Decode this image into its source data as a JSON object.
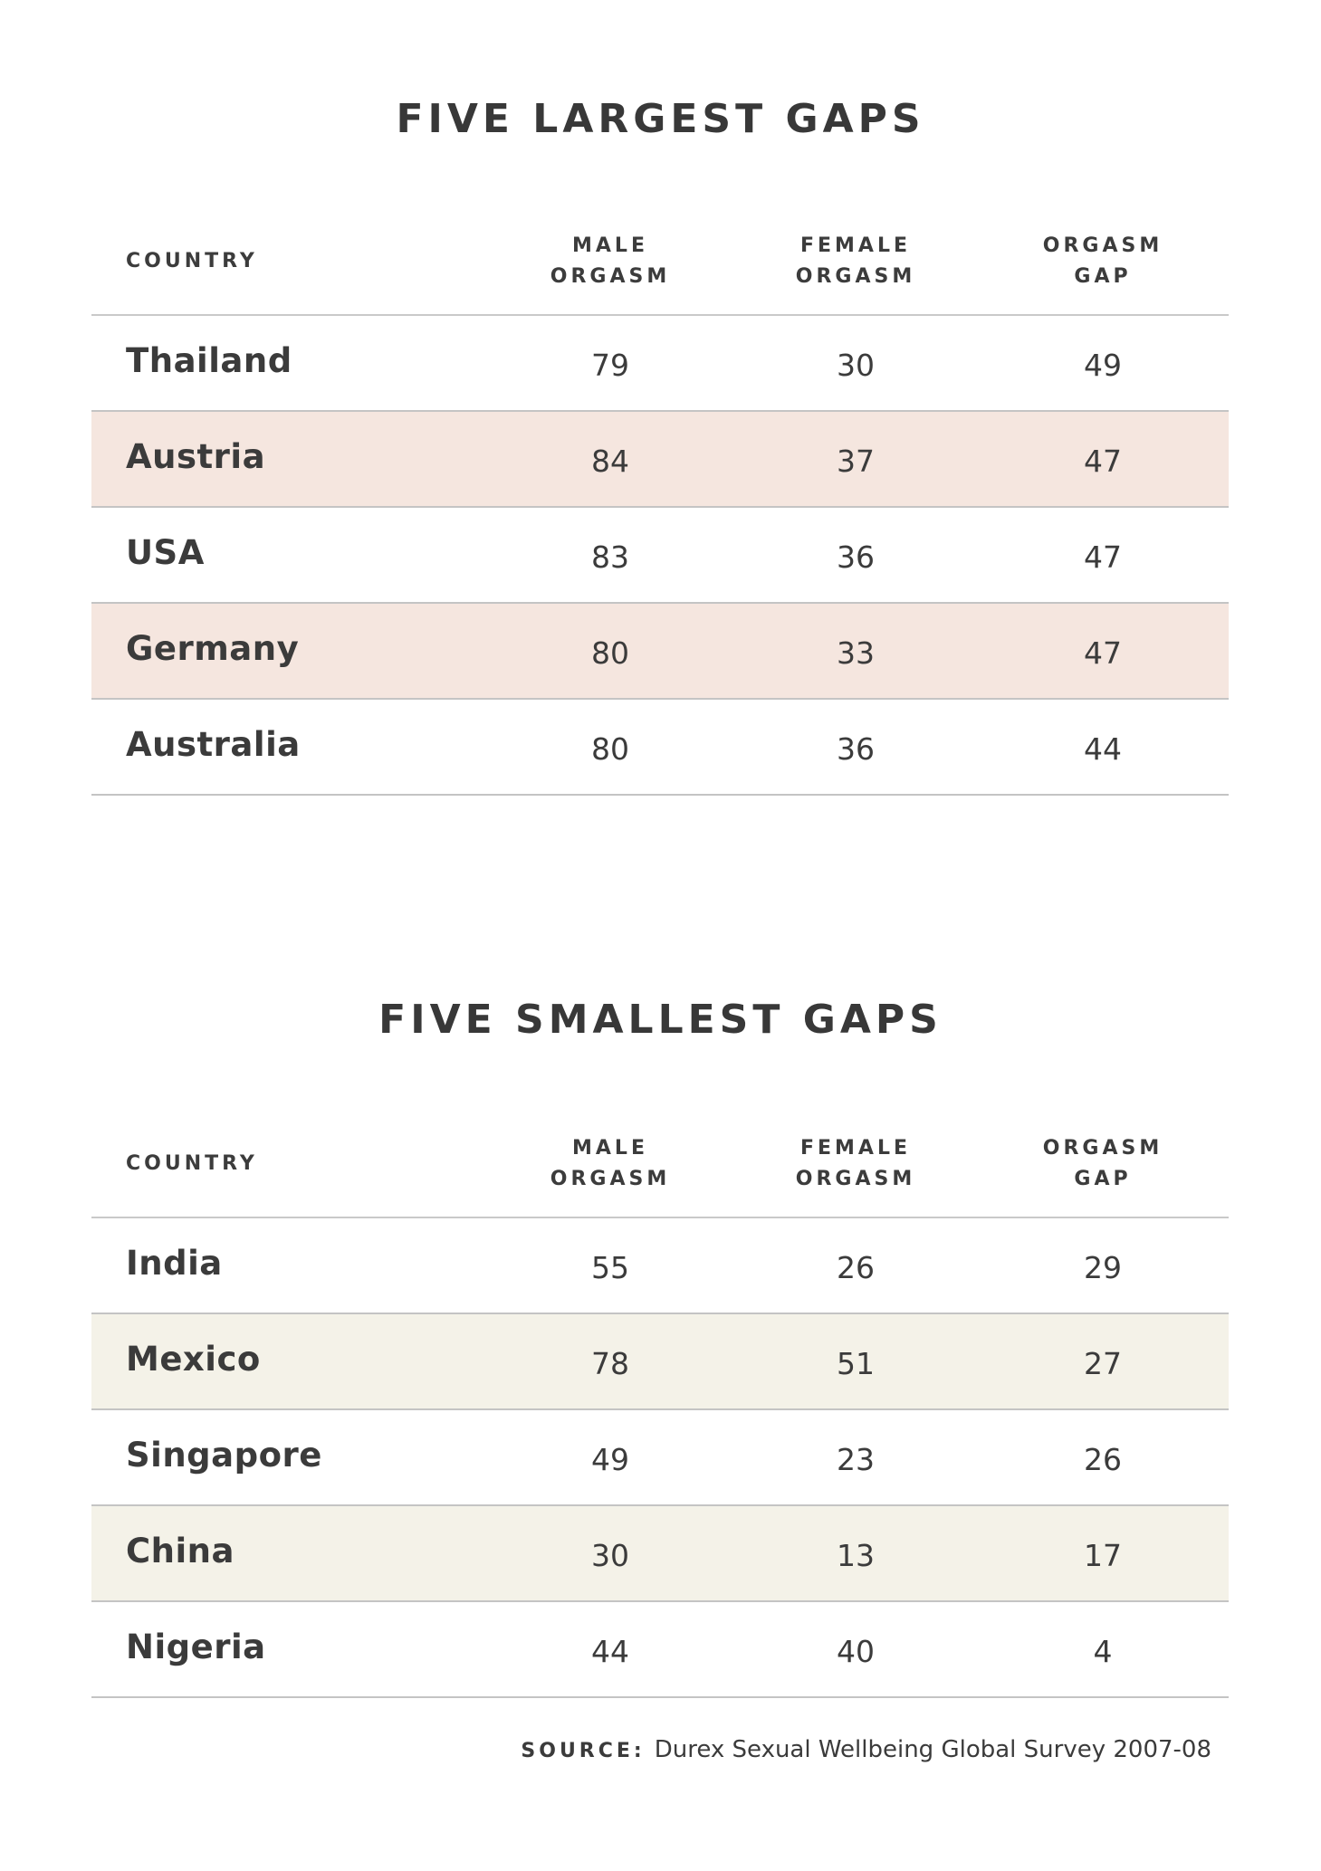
{
  "chart_data": [
    {
      "type": "table",
      "title": "FIVE LARGEST GAPS",
      "columns": [
        {
          "line1": "COUNTRY",
          "line2": ""
        },
        {
          "line1": "MALE",
          "line2": "ORGASM"
        },
        {
          "line1": "FEMALE",
          "line2": "ORGASM"
        },
        {
          "line1": "ORGASM",
          "line2": "GAP"
        }
      ],
      "rows": [
        {
          "country": "Thailand",
          "male": 79,
          "female": 30,
          "gap": 49
        },
        {
          "country": "Austria",
          "male": 84,
          "female": 37,
          "gap": 47
        },
        {
          "country": "USA",
          "male": 83,
          "female": 36,
          "gap": 47
        },
        {
          "country": "Germany",
          "male": 80,
          "female": 33,
          "gap": 47
        },
        {
          "country": "Australia",
          "male": 80,
          "female": 36,
          "gap": 44
        }
      ],
      "row_shade_color": "#f5e6df"
    },
    {
      "type": "table",
      "title": "FIVE SMALLEST GAPS",
      "columns": [
        {
          "line1": "COUNTRY",
          "line2": ""
        },
        {
          "line1": "MALE",
          "line2": "ORGASM"
        },
        {
          "line1": "FEMALE",
          "line2": "ORGASM"
        },
        {
          "line1": "ORGASM",
          "line2": "GAP"
        }
      ],
      "rows": [
        {
          "country": "India",
          "male": 55,
          "female": 26,
          "gap": 29
        },
        {
          "country": "Mexico",
          "male": 78,
          "female": 51,
          "gap": 27
        },
        {
          "country": "Singapore",
          "male": 49,
          "female": 23,
          "gap": 26
        },
        {
          "country": "China",
          "male": 30,
          "female": 13,
          "gap": 17
        },
        {
          "country": "Nigeria",
          "male": 44,
          "female": 40,
          "gap": 4
        }
      ],
      "row_shade_color": "#f4f2e8"
    }
  ],
  "source": {
    "label": "SOURCE:",
    "text": "Durex Sexual Wellbeing Global Survey 2007-08"
  }
}
